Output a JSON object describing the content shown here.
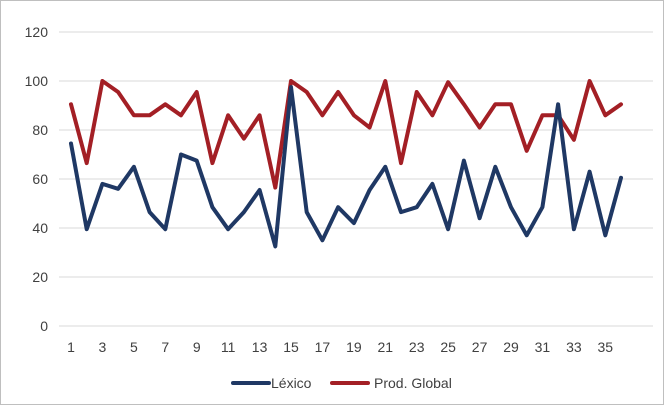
{
  "chart_data": {
    "type": "line",
    "title": "",
    "xlabel": "",
    "ylabel": "",
    "ylim": [
      0,
      120
    ],
    "yticks": [
      0,
      20,
      40,
      60,
      80,
      100,
      120
    ],
    "x": [
      1,
      2,
      3,
      4,
      5,
      6,
      7,
      8,
      9,
      10,
      11,
      12,
      13,
      14,
      15,
      16,
      17,
      18,
      19,
      20,
      21,
      22,
      23,
      24,
      25,
      26,
      27,
      28,
      29,
      30,
      31,
      32,
      33,
      34,
      35,
      36
    ],
    "x_tick_labels": [
      "1",
      "3",
      "5",
      "7",
      "9",
      "11",
      "13",
      "15",
      "17",
      "19",
      "21",
      "23",
      "25",
      "27",
      "29",
      "31",
      "33",
      "35"
    ],
    "grid": "horizontal",
    "legend_position": "bottom",
    "series": [
      {
        "name": "Léxico",
        "color": "#1f3864",
        "values": [
          74.5,
          39.5,
          58,
          56,
          65,
          46.5,
          39.5,
          70,
          67.5,
          48.5,
          39.5,
          46.5,
          55.5,
          32.5,
          97.5,
          46.5,
          35,
          48.5,
          42,
          55.5,
          65,
          46.5,
          48.5,
          58,
          39.5,
          67.5,
          44,
          65,
          48.5,
          37,
          48.5,
          90.5,
          39.5,
          63,
          37,
          60.5
        ]
      },
      {
        "name": "Prod. Global",
        "color": "#a31f25",
        "values": [
          90.5,
          66.5,
          100,
          95.5,
          86,
          86,
          90.5,
          86,
          95.5,
          66.5,
          86,
          76.5,
          86,
          56.5,
          100,
          95.5,
          86,
          95.5,
          86,
          81,
          100,
          66.5,
          95.5,
          86,
          99.5,
          90.5,
          81,
          90.5,
          90.5,
          71.5,
          86,
          86,
          76,
          100,
          86,
          90.5
        ]
      }
    ]
  }
}
